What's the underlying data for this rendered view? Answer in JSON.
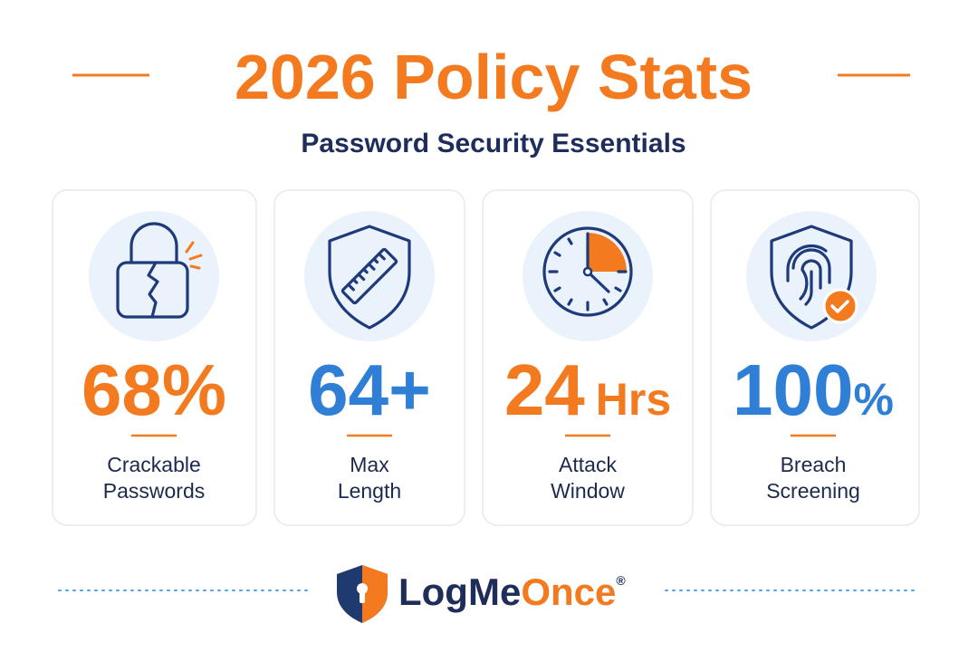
{
  "header": {
    "title": "2026 Policy Stats",
    "subtitle": "Password Security Essentials"
  },
  "cards": [
    {
      "value": "68%",
      "label": [
        "Crackable",
        "Passwords"
      ]
    },
    {
      "value": "64+",
      "label": [
        "Max",
        "Length"
      ]
    },
    {
      "value": "24",
      "suffix": "Hrs",
      "label": [
        "Attack",
        "Window"
      ]
    },
    {
      "value": "100",
      "suffix": "%",
      "label": [
        "Breach",
        "Screening"
      ]
    }
  ],
  "footer": {
    "brand": [
      "LogMe",
      "Once"
    ],
    "mark": "®"
  }
}
